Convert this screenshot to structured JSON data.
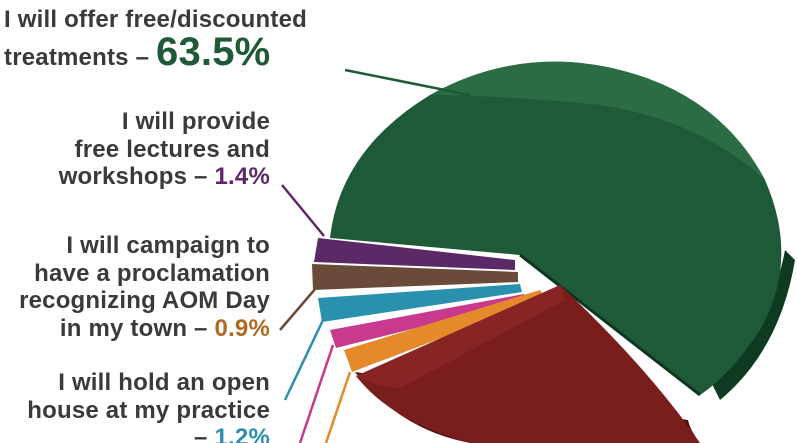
{
  "chart_data": {
    "type": "pie",
    "title": "",
    "slices": [
      {
        "label_lines": [
          "I will offer free/discounted",
          "treatments –"
        ],
        "value_text": "63.5%",
        "value": 63.5,
        "color": "#1f5a38"
      },
      {
        "label_lines": [
          "I will provide",
          "free lectures and",
          "workshops –"
        ],
        "value_text": "1.4%",
        "value": 1.4,
        "color": "#5b2a66"
      },
      {
        "label_lines": [
          "I will campaign to",
          "have a proclamation",
          "recognizing AOM Day",
          "in my town –"
        ],
        "value_text": "0.9%",
        "value": 0.9,
        "color": "#6a4a38"
      },
      {
        "label_lines": [
          "I will hold an open",
          "house at my practice",
          "–"
        ],
        "value_text": "1.2%",
        "value": 1.2,
        "color": "#2b8fae"
      }
    ]
  }
}
